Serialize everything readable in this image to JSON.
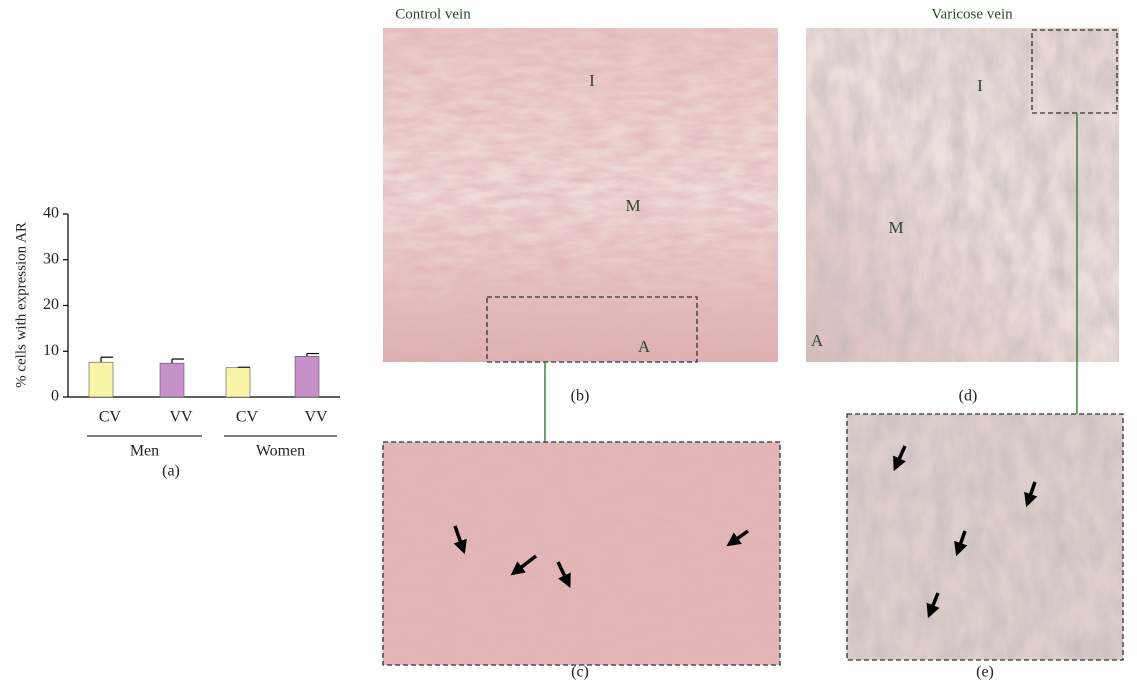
{
  "chart_data": {
    "type": "bar",
    "ylabel": "% cells with expression AR",
    "categories": [
      "CV",
      "VV",
      "CV",
      "VV"
    ],
    "groups": [
      "Men",
      "Women"
    ],
    "values": [
      7.6,
      7.4,
      6.4,
      8.9
    ],
    "errors": [
      1.1,
      0.9,
      0.1,
      0.6
    ],
    "colors": [
      "#f8f5a6",
      "#c591c8",
      "#f8f5a6",
      "#c591c8"
    ],
    "ylim": [
      0,
      40
    ],
    "yticks": [
      0,
      10,
      20,
      30,
      40
    ],
    "grid": false
  },
  "figure": {
    "columns": [
      "Control vein",
      "Varicose vein"
    ],
    "panel_labels": {
      "a": "(a)",
      "b": "(b)",
      "c": "(c)",
      "d": "(d)",
      "e": "(e)"
    },
    "image_labels": {
      "b": [
        "I",
        "M",
        "A"
      ],
      "d": [
        "I",
        "M",
        "A"
      ]
    }
  }
}
